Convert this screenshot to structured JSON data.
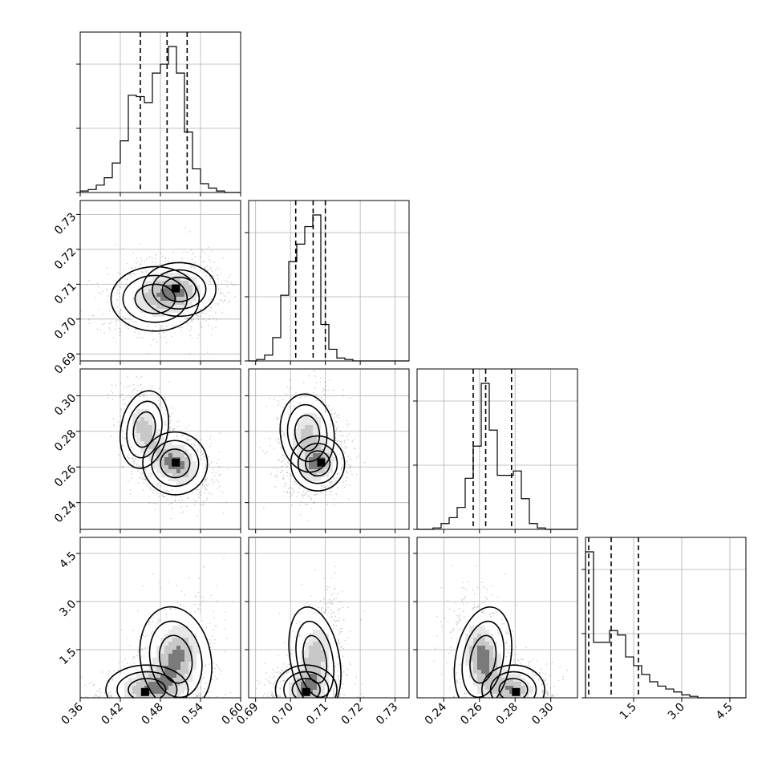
{
  "chart_data": {
    "type": "corner",
    "n_params": 4,
    "params": [
      {
        "range": [
          0.36,
          0.6
        ],
        "ticks": [
          0.36,
          0.42,
          0.48,
          0.54,
          0.6
        ],
        "tick_labels": [
          "0.36",
          "0.42",
          "0.48",
          "0.54",
          "0.60"
        ],
        "quantiles": [
          0.45,
          0.49,
          0.52
        ],
        "hist": {
          "edges_start": 0.36,
          "bin_width": 0.012,
          "counts": [
            1,
            2,
            5,
            10,
            20,
            35,
            66,
            65,
            61,
            81,
            87,
            99,
            81,
            41,
            16,
            6,
            3,
            1,
            0,
            0
          ]
        }
      },
      {
        "range": [
          0.688,
          0.734
        ],
        "ticks": [
          0.69,
          0.7,
          0.71,
          0.72,
          0.73
        ],
        "tick_labels": [
          "0.69",
          "0.70",
          "0.71",
          "0.72",
          "0.73"
        ],
        "quantiles": [
          0.7015,
          0.7065,
          0.71
        ],
        "hist": {
          "edges_start": 0.688,
          "bin_width": 0.0023,
          "counts": [
            0,
            1,
            4,
            16,
            45,
            68,
            80,
            92,
            100,
            25,
            8,
            2,
            1,
            0,
            0,
            0,
            0,
            0,
            0,
            0
          ]
        }
      },
      {
        "range": [
          0.225,
          0.315
        ],
        "ticks": [
          0.24,
          0.26,
          0.28,
          0.3
        ],
        "tick_labels": [
          "0.24",
          "0.26",
          "0.28",
          "0.30"
        ],
        "quantiles": [
          0.2565,
          0.2635,
          0.278
        ],
        "hist": {
          "edges_start": 0.225,
          "bin_width": 0.0045,
          "counts": [
            0,
            0,
            1,
            4,
            8,
            15,
            35,
            57,
            100,
            68,
            37,
            37,
            40,
            21,
            4,
            1,
            0,
            0,
            0,
            0
          ]
        }
      },
      {
        "range": [
          0.0,
          5.0
        ],
        "ticks": [
          1.5,
          3.0,
          4.5
        ],
        "tick_labels": [
          "1.5",
          "3.0",
          "4.5"
        ],
        "quantiles": [
          0.1,
          0.8,
          1.65
        ],
        "hist": {
          "edges_start": 0.0,
          "bin_width": 0.25,
          "counts": [
            100,
            38,
            38,
            46,
            43,
            28,
            22,
            16,
            11,
            8,
            6,
            4,
            2,
            1,
            0,
            0,
            0,
            0,
            0,
            0
          ]
        }
      }
    ],
    "pairs": [
      {
        "row": 1,
        "col": 0,
        "modes": [
          {
            "x": 0.472,
            "y": 0.7058,
            "sx": 0.03,
            "sy": 0.0042,
            "r": 0.0,
            "w": 0.45
          },
          {
            "x": 0.508,
            "y": 0.7085,
            "sx": 0.025,
            "sy": 0.0035,
            "r": 0.0,
            "w": 0.55
          }
        ],
        "peak": [
          0.503,
          0.7088
        ]
      },
      {
        "row": 2,
        "col": 0,
        "modes": [
          {
            "x": 0.456,
            "y": 0.281,
            "sx": 0.016,
            "sy": 0.01,
            "r": -0.3,
            "w": 0.42
          },
          {
            "x": 0.502,
            "y": 0.262,
            "sx": 0.022,
            "sy": 0.008,
            "r": -0.3,
            "w": 0.58
          }
        ],
        "peak": [
          0.503,
          0.2625
        ]
      },
      {
        "row": 2,
        "col": 1,
        "modes": [
          {
            "x": 0.7048,
            "y": 0.279,
            "sx": 0.0035,
            "sy": 0.01,
            "r": 0.2,
            "w": 0.42
          },
          {
            "x": 0.7078,
            "y": 0.262,
            "sx": 0.0035,
            "sy": 0.007,
            "r": 0.2,
            "w": 0.58
          }
        ],
        "peak": [
          0.7088,
          0.2625
        ]
      },
      {
        "row": 3,
        "col": 0,
        "modes": [
          {
            "x": 0.46,
            "y": 0.25,
            "sx": 0.028,
            "sy": 0.35,
            "r": 0.0,
            "w": 0.45
          },
          {
            "x": 0.503,
            "y": 1.2,
            "sx": 0.024,
            "sy": 0.75,
            "r": 0.3,
            "w": 0.55
          }
        ],
        "peak": [
          0.457,
          0.18
        ]
      },
      {
        "row": 3,
        "col": 1,
        "modes": [
          {
            "x": 0.7045,
            "y": 0.25,
            "sx": 0.004,
            "sy": 0.35,
            "r": 0.0,
            "w": 0.45
          },
          {
            "x": 0.707,
            "y": 1.2,
            "sx": 0.0032,
            "sy": 0.75,
            "r": 0.3,
            "w": 0.55
          }
        ],
        "peak": [
          0.7045,
          0.18
        ]
      },
      {
        "row": 3,
        "col": 2,
        "modes": [
          {
            "x": 0.279,
            "y": 0.25,
            "sx": 0.008,
            "sy": 0.35,
            "r": 0.0,
            "w": 0.45
          },
          {
            "x": 0.262,
            "y": 1.2,
            "sx": 0.007,
            "sy": 0.75,
            "r": -0.3,
            "w": 0.55
          }
        ],
        "peak": [
          0.2805,
          0.18
        ]
      }
    ],
    "grid": true
  }
}
